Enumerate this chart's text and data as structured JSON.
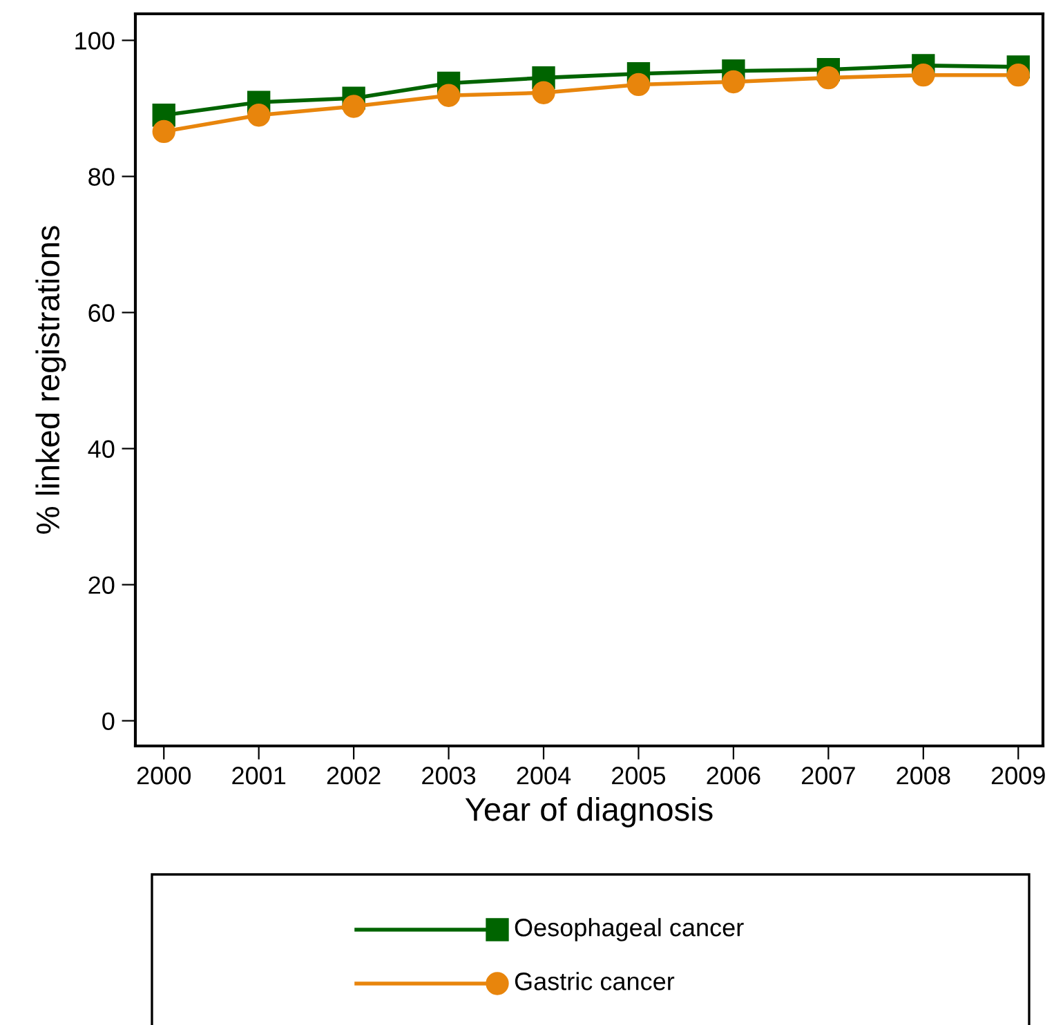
{
  "chart_data": {
    "type": "line",
    "xlabel": "Year of diagnosis",
    "ylabel": "% linked registrations",
    "x": [
      2000,
      2001,
      2002,
      2003,
      2004,
      2005,
      2006,
      2007,
      2008,
      2009
    ],
    "xlim": [
      1999.7,
      2009.26
    ],
    "xticks": [
      2000,
      2001,
      2002,
      2003,
      2004,
      2005,
      2006,
      2007,
      2008,
      2009
    ],
    "ylim": [
      -3.7,
      103.9
    ],
    "yticks": [
      0,
      20,
      40,
      60,
      80,
      100
    ],
    "grid": false,
    "legend": "bottom",
    "series": [
      {
        "name": "Oesophageal cancer",
        "color": "#006400",
        "marker": "square",
        "values": [
          89.0,
          90.9,
          91.5,
          93.7,
          94.5,
          95.1,
          95.5,
          95.7,
          96.3,
          96.1
        ]
      },
      {
        "name": "Gastric cancer",
        "color": "#e8850c",
        "marker": "circle",
        "values": [
          86.6,
          89.0,
          90.3,
          91.9,
          92.3,
          93.5,
          93.9,
          94.5,
          94.9,
          94.9
        ]
      }
    ]
  }
}
